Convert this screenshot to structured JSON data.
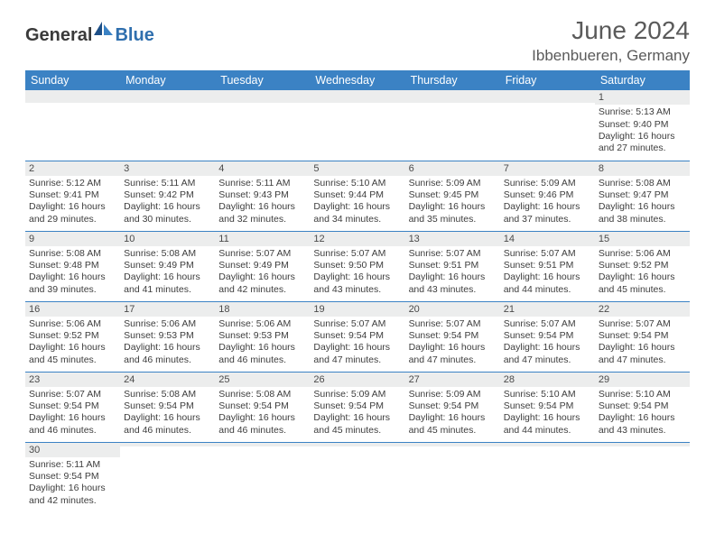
{
  "brand": {
    "general": "General",
    "blue": "Blue"
  },
  "title": {
    "month": "June 2024",
    "location": "Ibbenbueren, Germany"
  },
  "colors": {
    "header_bg": "#3b82c4",
    "header_text": "#ffffff",
    "daynum_bg": "#eceded",
    "border": "#3b82c4",
    "text": "#3d3d3d",
    "logo_blue": "#2f6fae"
  },
  "weekdays": [
    "Sunday",
    "Monday",
    "Tuesday",
    "Wednesday",
    "Thursday",
    "Friday",
    "Saturday"
  ],
  "grid": [
    [
      {
        "n": "",
        "sr": "",
        "ss": "",
        "dl": ""
      },
      {
        "n": "",
        "sr": "",
        "ss": "",
        "dl": ""
      },
      {
        "n": "",
        "sr": "",
        "ss": "",
        "dl": ""
      },
      {
        "n": "",
        "sr": "",
        "ss": "",
        "dl": ""
      },
      {
        "n": "",
        "sr": "",
        "ss": "",
        "dl": ""
      },
      {
        "n": "",
        "sr": "",
        "ss": "",
        "dl": ""
      },
      {
        "n": "1",
        "sr": "Sunrise: 5:13 AM",
        "ss": "Sunset: 9:40 PM",
        "dl": "Daylight: 16 hours and 27 minutes."
      }
    ],
    [
      {
        "n": "2",
        "sr": "Sunrise: 5:12 AM",
        "ss": "Sunset: 9:41 PM",
        "dl": "Daylight: 16 hours and 29 minutes."
      },
      {
        "n": "3",
        "sr": "Sunrise: 5:11 AM",
        "ss": "Sunset: 9:42 PM",
        "dl": "Daylight: 16 hours and 30 minutes."
      },
      {
        "n": "4",
        "sr": "Sunrise: 5:11 AM",
        "ss": "Sunset: 9:43 PM",
        "dl": "Daylight: 16 hours and 32 minutes."
      },
      {
        "n": "5",
        "sr": "Sunrise: 5:10 AM",
        "ss": "Sunset: 9:44 PM",
        "dl": "Daylight: 16 hours and 34 minutes."
      },
      {
        "n": "6",
        "sr": "Sunrise: 5:09 AM",
        "ss": "Sunset: 9:45 PM",
        "dl": "Daylight: 16 hours and 35 minutes."
      },
      {
        "n": "7",
        "sr": "Sunrise: 5:09 AM",
        "ss": "Sunset: 9:46 PM",
        "dl": "Daylight: 16 hours and 37 minutes."
      },
      {
        "n": "8",
        "sr": "Sunrise: 5:08 AM",
        "ss": "Sunset: 9:47 PM",
        "dl": "Daylight: 16 hours and 38 minutes."
      }
    ],
    [
      {
        "n": "9",
        "sr": "Sunrise: 5:08 AM",
        "ss": "Sunset: 9:48 PM",
        "dl": "Daylight: 16 hours and 39 minutes."
      },
      {
        "n": "10",
        "sr": "Sunrise: 5:08 AM",
        "ss": "Sunset: 9:49 PM",
        "dl": "Daylight: 16 hours and 41 minutes."
      },
      {
        "n": "11",
        "sr": "Sunrise: 5:07 AM",
        "ss": "Sunset: 9:49 PM",
        "dl": "Daylight: 16 hours and 42 minutes."
      },
      {
        "n": "12",
        "sr": "Sunrise: 5:07 AM",
        "ss": "Sunset: 9:50 PM",
        "dl": "Daylight: 16 hours and 43 minutes."
      },
      {
        "n": "13",
        "sr": "Sunrise: 5:07 AM",
        "ss": "Sunset: 9:51 PM",
        "dl": "Daylight: 16 hours and 43 minutes."
      },
      {
        "n": "14",
        "sr": "Sunrise: 5:07 AM",
        "ss": "Sunset: 9:51 PM",
        "dl": "Daylight: 16 hours and 44 minutes."
      },
      {
        "n": "15",
        "sr": "Sunrise: 5:06 AM",
        "ss": "Sunset: 9:52 PM",
        "dl": "Daylight: 16 hours and 45 minutes."
      }
    ],
    [
      {
        "n": "16",
        "sr": "Sunrise: 5:06 AM",
        "ss": "Sunset: 9:52 PM",
        "dl": "Daylight: 16 hours and 45 minutes."
      },
      {
        "n": "17",
        "sr": "Sunrise: 5:06 AM",
        "ss": "Sunset: 9:53 PM",
        "dl": "Daylight: 16 hours and 46 minutes."
      },
      {
        "n": "18",
        "sr": "Sunrise: 5:06 AM",
        "ss": "Sunset: 9:53 PM",
        "dl": "Daylight: 16 hours and 46 minutes."
      },
      {
        "n": "19",
        "sr": "Sunrise: 5:07 AM",
        "ss": "Sunset: 9:54 PM",
        "dl": "Daylight: 16 hours and 47 minutes."
      },
      {
        "n": "20",
        "sr": "Sunrise: 5:07 AM",
        "ss": "Sunset: 9:54 PM",
        "dl": "Daylight: 16 hours and 47 minutes."
      },
      {
        "n": "21",
        "sr": "Sunrise: 5:07 AM",
        "ss": "Sunset: 9:54 PM",
        "dl": "Daylight: 16 hours and 47 minutes."
      },
      {
        "n": "22",
        "sr": "Sunrise: 5:07 AM",
        "ss": "Sunset: 9:54 PM",
        "dl": "Daylight: 16 hours and 47 minutes."
      }
    ],
    [
      {
        "n": "23",
        "sr": "Sunrise: 5:07 AM",
        "ss": "Sunset: 9:54 PM",
        "dl": "Daylight: 16 hours and 46 minutes."
      },
      {
        "n": "24",
        "sr": "Sunrise: 5:08 AM",
        "ss": "Sunset: 9:54 PM",
        "dl": "Daylight: 16 hours and 46 minutes."
      },
      {
        "n": "25",
        "sr": "Sunrise: 5:08 AM",
        "ss": "Sunset: 9:54 PM",
        "dl": "Daylight: 16 hours and 46 minutes."
      },
      {
        "n": "26",
        "sr": "Sunrise: 5:09 AM",
        "ss": "Sunset: 9:54 PM",
        "dl": "Daylight: 16 hours and 45 minutes."
      },
      {
        "n": "27",
        "sr": "Sunrise: 5:09 AM",
        "ss": "Sunset: 9:54 PM",
        "dl": "Daylight: 16 hours and 45 minutes."
      },
      {
        "n": "28",
        "sr": "Sunrise: 5:10 AM",
        "ss": "Sunset: 9:54 PM",
        "dl": "Daylight: 16 hours and 44 minutes."
      },
      {
        "n": "29",
        "sr": "Sunrise: 5:10 AM",
        "ss": "Sunset: 9:54 PM",
        "dl": "Daylight: 16 hours and 43 minutes."
      }
    ],
    [
      {
        "n": "30",
        "sr": "Sunrise: 5:11 AM",
        "ss": "Sunset: 9:54 PM",
        "dl": "Daylight: 16 hours and 42 minutes."
      },
      {
        "n": "",
        "sr": "",
        "ss": "",
        "dl": ""
      },
      {
        "n": "",
        "sr": "",
        "ss": "",
        "dl": ""
      },
      {
        "n": "",
        "sr": "",
        "ss": "",
        "dl": ""
      },
      {
        "n": "",
        "sr": "",
        "ss": "",
        "dl": ""
      },
      {
        "n": "",
        "sr": "",
        "ss": "",
        "dl": ""
      },
      {
        "n": "",
        "sr": "",
        "ss": "",
        "dl": ""
      }
    ]
  ]
}
